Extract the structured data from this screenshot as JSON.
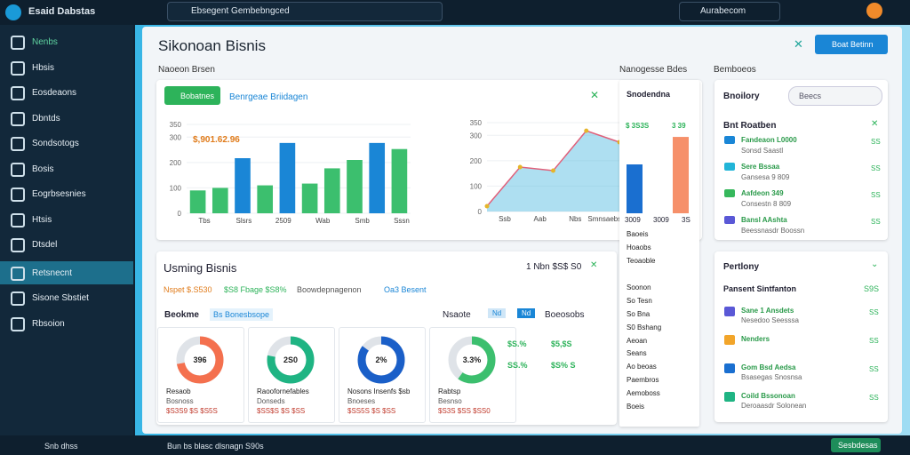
{
  "topbar": {
    "brand": "Esaid Dabstas",
    "search": "Ebsegent Gembebngced",
    "account": "Aurabecom"
  },
  "sidebar": {
    "items": [
      "Nenbs",
      "Hbsis",
      "Eosdeaons",
      "Dbntds",
      "Sondsotogs",
      "Bosis",
      "Eogrbsesnies",
      "Htsis",
      "Dtsdel",
      "Retsnecnt",
      "Sisone Sbstiet",
      "Rbsoion"
    ],
    "active": 9
  },
  "header": {
    "title": "Sikonoan Bisnis",
    "button": "Boat Betinn",
    "subtitle": "Naoeon Brsen",
    "filters": [
      "Nanogesse Bdes",
      "Bemboeos"
    ]
  },
  "overview": {
    "button": "Bobatnes",
    "filter": "Benrgeae Briidagen"
  },
  "bar_chart": {
    "type": "bar",
    "annotation": "$,901.62.96",
    "values": [
      90,
      100,
      217,
      110,
      277,
      117,
      177,
      210,
      277,
      253
    ],
    "colors": [
      "#3cbf6e",
      "#3cbf6e",
      "#1a86d6",
      "#3cbf6e",
      "#1a86d6",
      "#3cbf6e",
      "#3cbf6e",
      "#3cbf6e",
      "#1a86d6",
      "#3cbf6e"
    ],
    "ylim": [
      0,
      350
    ],
    "yticks": [
      350,
      300,
      200,
      100,
      0
    ],
    "x_labels": [
      "Tbs",
      "Slsrs",
      "2509",
      "Wab",
      "Smb",
      "Sssn"
    ]
  },
  "area_chart": {
    "type": "area",
    "values": [
      21,
      175,
      161,
      318,
      273
    ],
    "color": "#4cb8e0",
    "ylim": [
      0,
      350
    ],
    "yticks": [
      350,
      300,
      200,
      100,
      0
    ],
    "x_labels": [
      "Ssb",
      "Aab",
      "Nbs",
      "Smnsaebsoon"
    ]
  },
  "dropdown": {
    "title": "Snodendna",
    "chart_labels": [
      "$ 3S3S",
      "3 39"
    ],
    "chart_values": [
      160,
      250
    ],
    "chart_colors": [
      "#1a6fd0",
      "#f6906a"
    ],
    "chart_ylim": [
      0,
      320
    ],
    "chart_x_labels": [
      "3009",
      "3009",
      "3S"
    ],
    "items": [
      "Baoeis",
      "Hoaobs",
      "Teoaoble",
      "Soonon",
      "So Tesn",
      "So Bna",
      "S0 Bshang",
      "Aeoan",
      "Seans",
      "Ao beoas",
      "Paembros",
      "Aemoboss",
      "Boeis"
    ]
  },
  "inventory": {
    "title": "Bnoilory",
    "search": "Beecs",
    "section": "Bnt Roatben",
    "items": [
      {
        "name": "Fandeaon L0000",
        "sub": "Sonsd Saastl",
        "value": "SS",
        "color": "#1a86d6"
      },
      {
        "name": "Sere Bssaa",
        "sub": "Gansesa 9 809",
        "value": "SS",
        "color": "#22b5d8"
      },
      {
        "name": "Aafdeon 349",
        "sub": "Consestn 8 809",
        "value": "SS",
        "color": "#36b85c"
      },
      {
        "name": "Bansl AAshta",
        "sub": "Beessnasdr Boossn",
        "value": "SS",
        "color": "#5a58d6"
      }
    ]
  },
  "usage": {
    "title": "Usming Bisnis",
    "right": "1 Nbn $S$ S0",
    "stats": [
      "Nspet $.S530",
      "$S8 Fbage $S8%",
      "Boowdepnagenon",
      "Oa3 Besent"
    ],
    "tab": "Beokme",
    "chip": "Bs Bonesbsope",
    "right_label": "Nsaote",
    "chips": [
      "Nd",
      "Nd"
    ],
    "right_filter": "Boeosobs",
    "donuts": [
      {
        "center": "396",
        "value": 72,
        "color": "#f4704e",
        "title": "Resaob",
        "lines": [
          "Bosnoss",
          "$S3S9 $S $S5S"
        ]
      },
      {
        "center": "2S0",
        "value": 78,
        "color": "#1fb483",
        "title": "Raoofornefables",
        "lines": [
          "Donseds",
          "$SS$S $S $SS"
        ]
      },
      {
        "center": "2%",
        "value": 85,
        "color": "#1a5fc8",
        "title": "Nosons Insenfs $sb",
        "lines": [
          "Bnoeses",
          "$SS5S $S $SS"
        ]
      },
      {
        "center": "3.3%",
        "value": 60,
        "color": "#3cbf6e",
        "title": "Rabtsp",
        "lines": [
          "Besnso",
          "$S3S $SS $SS0"
        ]
      }
    ],
    "mini": [
      "$S.%",
      "$5,$S",
      "SS.%",
      "$S% S"
    ]
  },
  "portfolio": {
    "title": "Pertlony",
    "section": "Pansent Sintfanton",
    "section_value": "S9S",
    "items": [
      {
        "name": "Sane 1 Ansdets",
        "sub": "Nesedoo Seesssa",
        "value": "SS",
        "color": "#5a58d6"
      },
      {
        "name": "Nenders",
        "sub": "",
        "value": "SS",
        "color": "#f2a52a"
      },
      {
        "name": "Gom Bsd Aedsa",
        "sub": "Bsasegas Snosnsa",
        "value": "SS",
        "color": "#1a6fd0"
      },
      {
        "name": "Coild Bssonoan",
        "sub": "Deroaasdr Solonean",
        "value": "SS",
        "color": "#1fb483"
      }
    ]
  },
  "footer": {
    "left": "Snb dhss",
    "center": "Bun bs blasc dlsnagn S90s",
    "button": "Sesbdesas"
  }
}
